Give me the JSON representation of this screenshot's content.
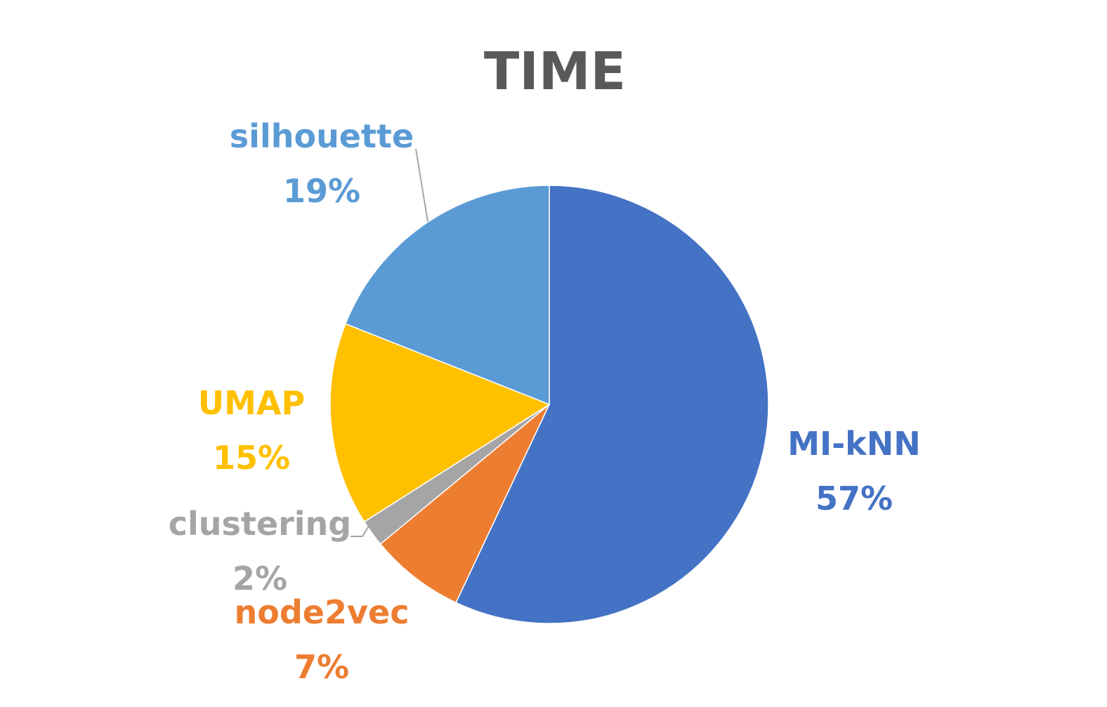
{
  "chart_data": {
    "type": "pie",
    "title": "TIME",
    "start_angle_deg": 0,
    "direction": "clockwise",
    "slices": [
      {
        "label": "MI-kNN",
        "value": 57,
        "value_label": "57%",
        "color": "#4472C4"
      },
      {
        "label": "node2vec",
        "value": 7,
        "value_label": "7%",
        "color": "#ED7D31"
      },
      {
        "label": "clustering",
        "value": 2,
        "value_label": "2%",
        "color": "#A5A5A5"
      },
      {
        "label": "UMAP",
        "value": 15,
        "value_label": "15%",
        "color": "#FFC000"
      },
      {
        "label": "silhouette",
        "value": 19,
        "value_label": "19%",
        "color": "#5B9BD5"
      }
    ]
  },
  "colors": {
    "title": "#595959",
    "slice_border": "#ffffff",
    "leader_line": "#A5A5A5",
    "background": "#ffffff"
  }
}
